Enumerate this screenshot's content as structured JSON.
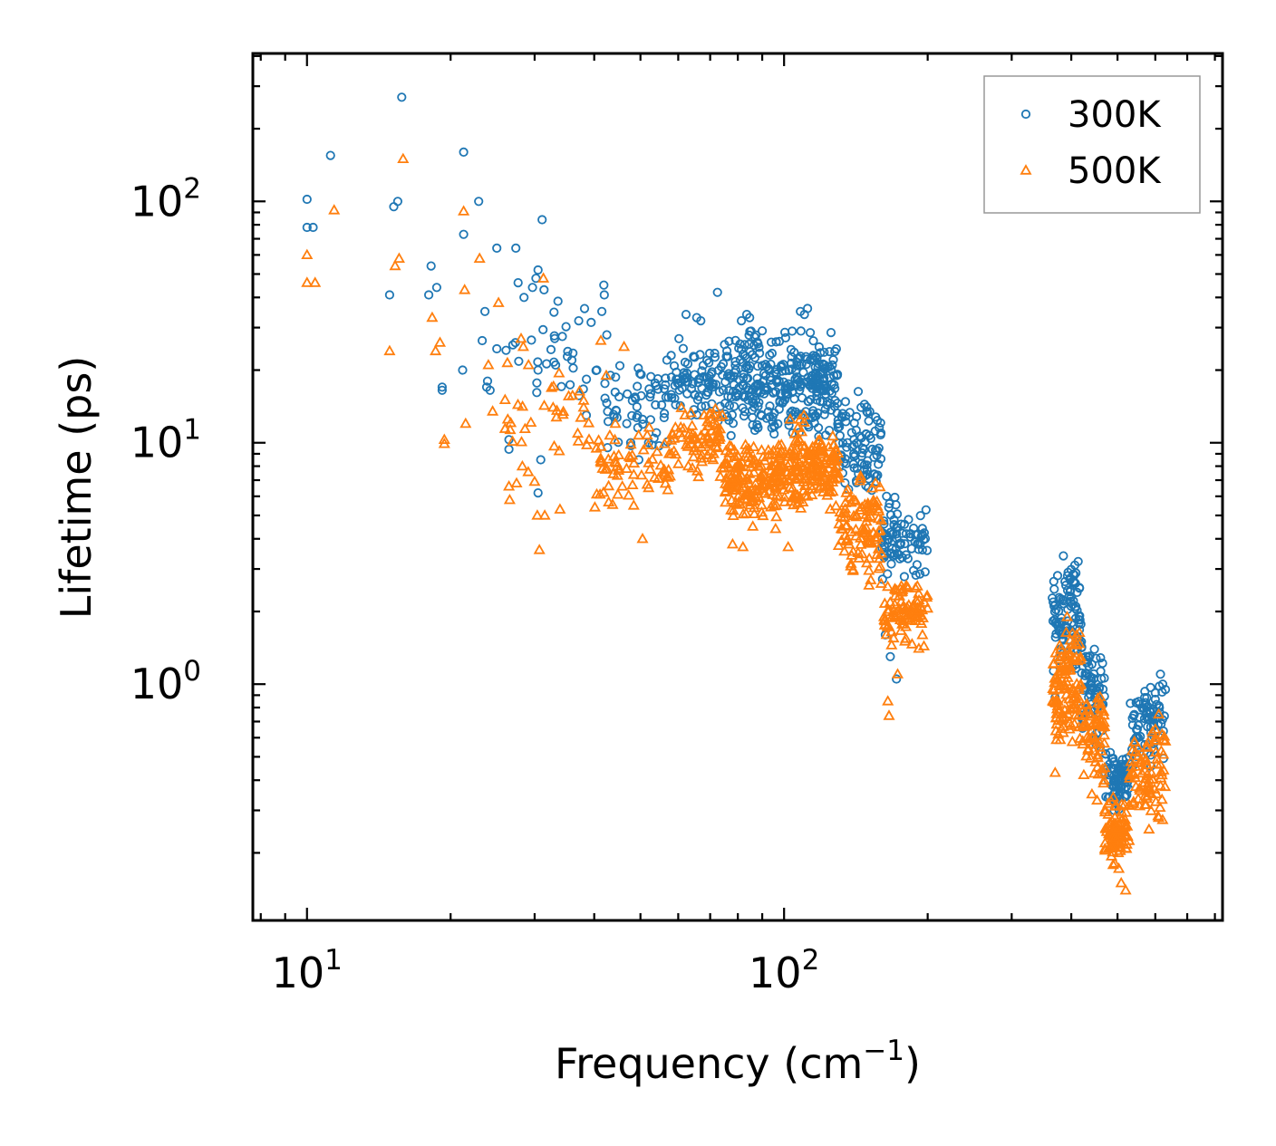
{
  "chart_data": {
    "type": "scatter",
    "title": "",
    "xlabel": "Frequency (cm",
    "xlabel_sup": "−1",
    "xlabel_close": ")",
    "ylabel": "Lifetime (ps)",
    "xscale": "log",
    "yscale": "log",
    "xlim": [
      7.7,
      830
    ],
    "ylim": [
      0.105,
      410
    ],
    "x_ticks": [
      {
        "value": 10,
        "base": "10",
        "exp": "1"
      },
      {
        "value": 100,
        "base": "10",
        "exp": "2"
      }
    ],
    "y_ticks": [
      {
        "value": 1,
        "base": "10",
        "exp": "0"
      },
      {
        "value": 10,
        "base": "10",
        "exp": "1"
      },
      {
        "value": 100,
        "base": "10",
        "exp": "2"
      }
    ],
    "legend_position": "top-right",
    "series": [
      {
        "name": "300K",
        "color": "#1f77b4",
        "marker": "circle",
        "scatter_seed": 7,
        "points": [
          [
            10,
            102
          ],
          [
            10,
            78
          ],
          [
            10.3,
            78
          ],
          [
            11.2,
            155
          ],
          [
            15.2,
            95
          ],
          [
            15.5,
            100
          ],
          [
            15.8,
            270
          ],
          [
            14.9,
            41
          ],
          [
            18.2,
            54
          ],
          [
            18.7,
            44
          ],
          [
            18,
            41
          ],
          [
            19.2,
            17
          ],
          [
            19.2,
            16.5
          ],
          [
            21.3,
            160
          ],
          [
            21.3,
            73
          ],
          [
            21.2,
            20
          ],
          [
            22.9,
            100
          ],
          [
            23.3,
            26.5
          ],
          [
            23.6,
            35
          ],
          [
            23.9,
            18
          ],
          [
            23.8,
            17
          ],
          [
            24.2,
            16.5
          ],
          [
            25,
            64
          ],
          [
            25,
            24.5
          ],
          [
            26.5,
            10.3
          ],
          [
            26.5,
            9.4
          ],
          [
            27.4,
            64
          ],
          [
            27.7,
            46
          ],
          [
            28.5,
            40
          ],
          [
            29.7,
            44
          ],
          [
            30.5,
            52
          ],
          [
            30.2,
            48
          ],
          [
            30.5,
            20
          ],
          [
            30.9,
            8.5
          ],
          [
            30.5,
            6.2
          ],
          [
            31.1,
            84
          ],
          [
            31.4,
            43
          ],
          [
            33.2,
            21
          ],
          [
            35.9,
            22
          ],
          [
            38.5,
            13
          ],
          [
            40.5,
            20
          ],
          [
            41.9,
            45
          ],
          [
            42,
            41
          ],
          [
            41.5,
            35
          ],
          [
            42.5,
            28
          ],
          [
            45.1,
            15.5
          ],
          [
            46.8,
            12
          ],
          [
            47.7,
            10
          ],
          [
            49.6,
            8.5
          ],
          [
            50.5,
            12.5
          ],
          [
            52,
            10
          ],
          [
            54,
            11
          ],
          [
            56.8,
            22
          ],
          [
            58,
            23
          ],
          [
            60.2,
            27
          ],
          [
            62.3,
            34
          ],
          [
            63.8,
            13
          ],
          [
            65.6,
            33
          ],
          [
            66.9,
            32
          ],
          [
            72.5,
            42
          ],
          [
            75.9,
            24
          ],
          [
            79.2,
            20
          ],
          [
            81.4,
            32
          ],
          [
            83.5,
            34
          ],
          [
            84.7,
            33
          ],
          [
            85.3,
            29
          ],
          [
            91.5,
            19
          ],
          [
            104,
            29
          ],
          [
            108.2,
            35
          ],
          [
            110.3,
            34
          ],
          [
            112,
            36
          ],
          [
            113.5,
            22
          ],
          [
            121,
            18
          ],
          [
            130,
            12
          ],
          [
            140,
            9
          ],
          [
            148,
            7.3
          ],
          [
            158,
            9.5
          ],
          [
            164,
            6
          ],
          [
            170,
            4.8
          ],
          [
            176,
            4.6
          ],
          [
            184,
            4.2
          ],
          [
            191,
            3.8
          ],
          [
            195,
            3.6
          ],
          [
            163,
            1.6
          ],
          [
            167,
            1.3
          ],
          [
            172,
            1.05
          ],
          [
            370,
            0.88
          ],
          [
            385,
            3.4
          ],
          [
            400,
            2.3
          ],
          [
            420,
            1.5
          ],
          [
            440,
            0.95
          ],
          [
            460,
            0.55
          ],
          [
            478,
            0.4
          ],
          [
            492,
            0.3
          ],
          [
            505,
            0.35
          ],
          [
            515,
            0.42
          ],
          [
            530,
            0.5
          ],
          [
            550,
            0.65
          ],
          [
            575,
            0.8
          ],
          [
            600,
            0.92
          ],
          [
            615,
            1.1
          ],
          [
            622,
            1.0
          ],
          [
            630,
            0.95
          ],
          [
            612,
            0.98
          ]
        ],
        "clusters": [
          [
            26,
            40,
            14,
            40,
            30
          ],
          [
            40,
            58,
            9,
            22,
            55
          ],
          [
            58,
            75,
            12,
            26,
            80
          ],
          [
            75,
            100,
            10,
            30,
            160
          ],
          [
            100,
            130,
            10,
            32,
            170
          ],
          [
            130,
            160,
            5.5,
            18,
            90
          ],
          [
            160,
            200,
            2.6,
            6,
            80
          ],
          [
            365,
            420,
            1.1,
            3.4,
            100
          ],
          [
            420,
            470,
            0.55,
            1.7,
            70
          ],
          [
            470,
            530,
            0.3,
            0.55,
            80
          ],
          [
            530,
            630,
            0.45,
            1.05,
            70
          ]
        ]
      },
      {
        "name": "500K",
        "color": "#ff7f0e",
        "marker": "triangle",
        "scatter_seed": 19,
        "points": [
          [
            10,
            60
          ],
          [
            10,
            46
          ],
          [
            10.4,
            46
          ],
          [
            11.4,
            92
          ],
          [
            14.9,
            24
          ],
          [
            15.3,
            54
          ],
          [
            15.6,
            58
          ],
          [
            15.9,
            150
          ],
          [
            18.3,
            33
          ],
          [
            18.6,
            24
          ],
          [
            19,
            26
          ],
          [
            19.4,
            10.3
          ],
          [
            19.4,
            9.9
          ],
          [
            21.3,
            91
          ],
          [
            21.4,
            43
          ],
          [
            21.5,
            12
          ],
          [
            23,
            58
          ],
          [
            24,
            21
          ],
          [
            24.5,
            13.5
          ],
          [
            25.2,
            38
          ],
          [
            26.5,
            6.6
          ],
          [
            26.6,
            5.8
          ],
          [
            27.5,
            6.8
          ],
          [
            28.1,
            27
          ],
          [
            28.4,
            25
          ],
          [
            30,
            6.9
          ],
          [
            30.4,
            5
          ],
          [
            30.7,
            3.6
          ],
          [
            31.5,
            5
          ],
          [
            31.3,
            48
          ],
          [
            32.8,
            14
          ],
          [
            33.9,
            5.3
          ],
          [
            38,
            14
          ],
          [
            41.3,
            26.5
          ],
          [
            42.4,
            19
          ],
          [
            44.3,
            12
          ],
          [
            46.2,
            25
          ],
          [
            48.4,
            5.5
          ],
          [
            50.5,
            4
          ],
          [
            52,
            6.5
          ],
          [
            58,
            9
          ],
          [
            63,
            8
          ],
          [
            68,
            13
          ],
          [
            71,
            8.5
          ],
          [
            76,
            8.2
          ],
          [
            78,
            3.8
          ],
          [
            82,
            3.7
          ],
          [
            86,
            4.5
          ],
          [
            96,
            4.4
          ],
          [
            102,
            3.7
          ],
          [
            108,
            12.5
          ],
          [
            110,
            13
          ],
          [
            118,
            7.2
          ],
          [
            125,
            5.3
          ],
          [
            135,
            3.9
          ],
          [
            143,
            3.5
          ],
          [
            152,
            2.7
          ],
          [
            158,
            5.2
          ],
          [
            162,
            1.9
          ],
          [
            165,
            0.85
          ],
          [
            166,
            0.74
          ],
          [
            168,
            1.45
          ],
          [
            173,
            1.1
          ],
          [
            176,
            2.4
          ],
          [
            182,
            2.5
          ],
          [
            195,
            1.6
          ],
          [
            370,
            0.43
          ],
          [
            392,
            1.9
          ],
          [
            410,
            1.6
          ],
          [
            430,
            0.75
          ],
          [
            442,
            0.35
          ],
          [
            453,
            0.33
          ],
          [
            465,
            0.43
          ],
          [
            478,
            0.32
          ],
          [
            490,
            0.21
          ],
          [
            502,
            0.2
          ],
          [
            509,
            0.15
          ],
          [
            520,
            0.14
          ],
          [
            540,
            0.32
          ],
          [
            556,
            0.37
          ],
          [
            578,
            0.55
          ],
          [
            610,
            0.75
          ],
          [
            620,
            0.62
          ],
          [
            630,
            0.58
          ],
          [
            600,
            0.65
          ]
        ],
        "clusters": [
          [
            26,
            40,
            7,
            24,
            35
          ],
          [
            40,
            58,
            5,
            12,
            65
          ],
          [
            58,
            75,
            7,
            15,
            80
          ],
          [
            75,
            100,
            4.6,
            11,
            180
          ],
          [
            100,
            130,
            5,
            13,
            180
          ],
          [
            130,
            160,
            2.5,
            8,
            100
          ],
          [
            160,
            200,
            1.4,
            2.8,
            90
          ],
          [
            365,
            420,
            0.5,
            1.9,
            120
          ],
          [
            420,
            470,
            0.36,
            1.05,
            70
          ],
          [
            470,
            530,
            0.17,
            0.35,
            90
          ],
          [
            530,
            630,
            0.24,
            0.7,
            80
          ]
        ]
      }
    ]
  }
}
